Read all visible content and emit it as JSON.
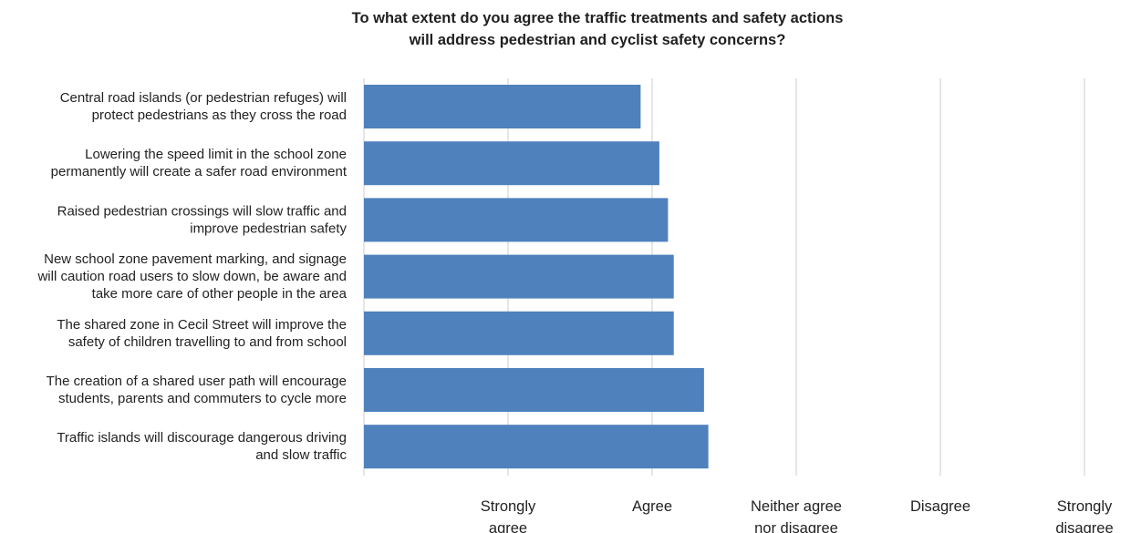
{
  "chart_data": {
    "type": "bar",
    "orientation": "horizontal",
    "title_lines": [
      "To what extent do you agree the traffic treatments and safety actions",
      "will address pedestrian and cyclist safety concerns?"
    ],
    "categories": [
      [
        "Central road islands (or pedestrian refuges) will",
        "protect pedestrians as they cross the road"
      ],
      [
        "Lowering the speed limit in the school zone",
        "permanently will create a safer road environment"
      ],
      [
        "Raised pedestrian crossings will slow traffic and",
        "improve pedestrian safety"
      ],
      [
        "New school zone pavement marking, and signage",
        "will caution road users to slow down, be aware and",
        "take more care of other people in the area"
      ],
      [
        "The shared zone in Cecil Street will improve the",
        "safety of children travelling to and from school"
      ],
      [
        "The creation of a shared user path will encourage",
        "students, parents and commuters to cycle more"
      ],
      [
        "Traffic islands will discourage dangerous driving",
        "and slow traffic"
      ]
    ],
    "values": [
      1.92,
      2.05,
      2.11,
      2.15,
      2.15,
      2.36,
      2.39
    ],
    "xlim": [
      0,
      5
    ],
    "x_ticks": [
      1,
      2,
      3,
      4,
      5
    ],
    "x_tick_labels": [
      [
        "Strongly",
        "agree"
      ],
      [
        "Agree"
      ],
      [
        "Neither agree",
        "nor disagree"
      ],
      [
        "Disagree"
      ],
      [
        "Strongly",
        "disagree"
      ]
    ],
    "bar_color": "#4f81bd",
    "grid_color": "#d9d9d9",
    "grid": true
  }
}
